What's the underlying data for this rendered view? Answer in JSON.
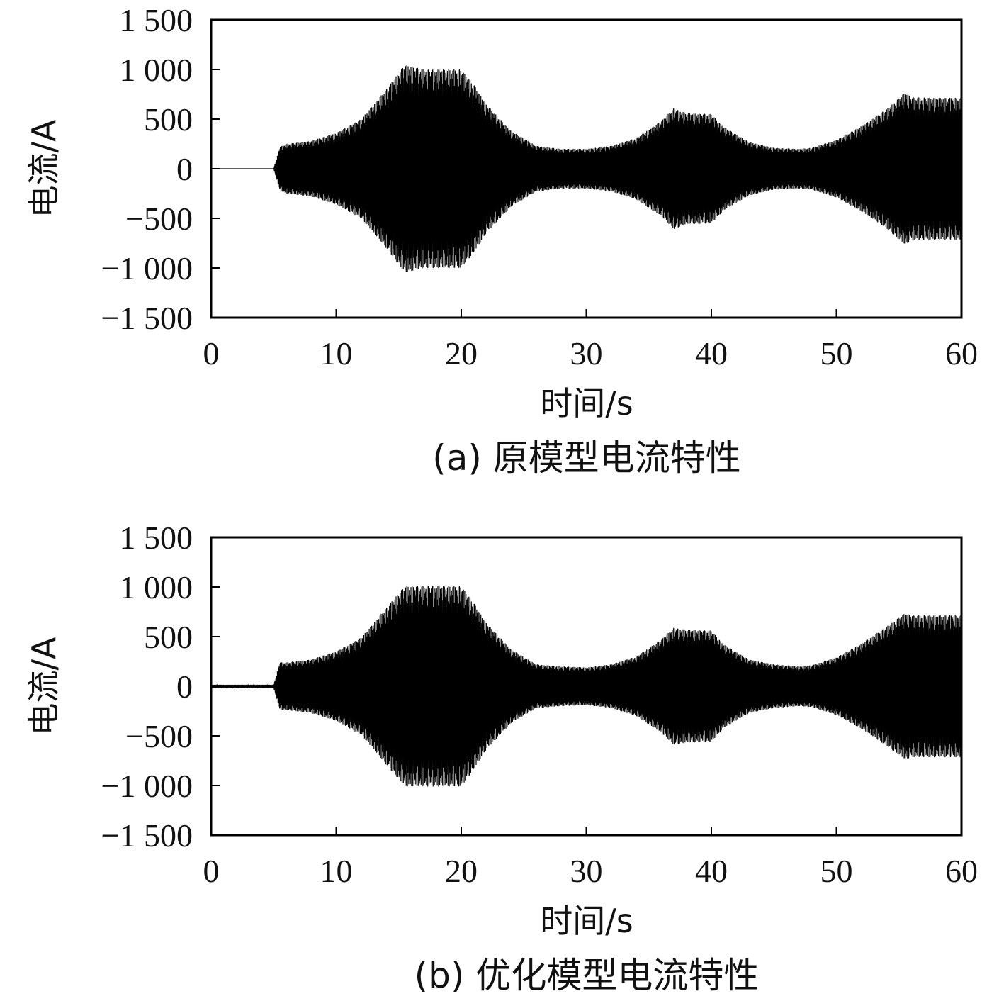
{
  "chart_data": [
    {
      "type": "line",
      "caption": "(a) 原模型电流特性",
      "xlabel": "时间/s",
      "ylabel": "电流/A",
      "xlim": [
        0,
        60
      ],
      "ylim": [
        -1500,
        1500
      ],
      "xticks": [
        "0",
        "10",
        "20",
        "30",
        "40",
        "50",
        "60"
      ],
      "yticks": [
        "1 500",
        "1 000",
        "500",
        "0",
        "−500",
        "−1 000",
        "−1 500"
      ],
      "ytick_values": [
        1500,
        1000,
        500,
        0,
        -500,
        -1000,
        -1500
      ],
      "xtick_values": [
        0,
        10,
        20,
        30,
        40,
        50,
        60
      ],
      "grid": false,
      "line_color": "#000000",
      "envelope": {
        "t": [
          0,
          5,
          5.5,
          6,
          8,
          10,
          12,
          14,
          15.5,
          17,
          20,
          21,
          22,
          24,
          26,
          28,
          30,
          32,
          34,
          36,
          37,
          38,
          40,
          41,
          43,
          45,
          47,
          48,
          50,
          52,
          54,
          55.5,
          56,
          58,
          60
        ],
        "amp": [
          0,
          0,
          220,
          250,
          280,
          360,
          500,
          800,
          1050,
          1000,
          1000,
          850,
          650,
          380,
          230,
          200,
          200,
          230,
          310,
          480,
          610,
          560,
          550,
          420,
          270,
          210,
          200,
          210,
          290,
          430,
          600,
          770,
          720,
          715,
          715
        ]
      }
    },
    {
      "type": "line",
      "caption": "(b) 优化模型电流特性",
      "xlabel": "时间/s",
      "ylabel": "电流/A",
      "xlim": [
        0,
        60
      ],
      "ylim": [
        -1500,
        1500
      ],
      "xticks": [
        "0",
        "10",
        "20",
        "30",
        "40",
        "50",
        "60"
      ],
      "yticks": [
        "1 500",
        "1 000",
        "500",
        "0",
        "−500",
        "−1 000",
        "−1 500"
      ],
      "ytick_values": [
        1500,
        1000,
        500,
        0,
        -500,
        -1000,
        -1500
      ],
      "xtick_values": [
        0,
        10,
        20,
        30,
        40,
        50,
        60
      ],
      "grid": false,
      "line_color": "#000000",
      "envelope": {
        "t": [
          0,
          5,
          5.5,
          6,
          8,
          10,
          12,
          14,
          15.5,
          17,
          20,
          21,
          22,
          24,
          26,
          28,
          30,
          32,
          34,
          36,
          37,
          38,
          40,
          41,
          43,
          45,
          47,
          48,
          50,
          52,
          54,
          55.5,
          56,
          58,
          60
        ],
        "amp": [
          15,
          15,
          240,
          240,
          270,
          350,
          490,
          790,
          1010,
          1010,
          1010,
          840,
          640,
          370,
          220,
          200,
          190,
          220,
          300,
          470,
          590,
          570,
          560,
          420,
          270,
          220,
          200,
          210,
          290,
          430,
          600,
          740,
          715,
          715,
          715
        ]
      }
    }
  ]
}
